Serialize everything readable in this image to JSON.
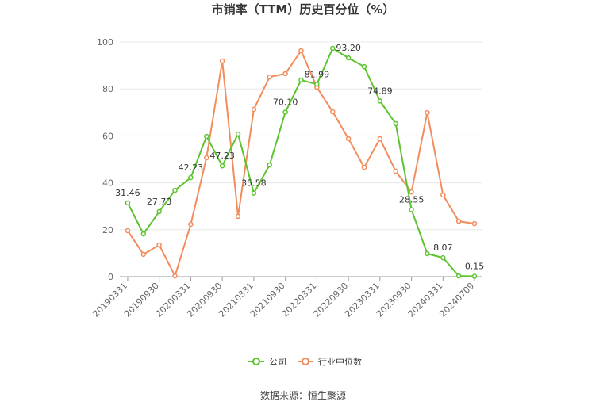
{
  "chart_data": {
    "type": "line",
    "title": "市销率（TTM）历史百分位（%）",
    "categories": [
      "20190331",
      null,
      "20190930",
      null,
      "20200331",
      null,
      "20200930",
      null,
      "20210331",
      null,
      "20210930",
      null,
      "20220331",
      null,
      "20220930",
      null,
      "20230331",
      null,
      "20230930",
      null,
      "20240331",
      null,
      "20240709"
    ],
    "series": [
      {
        "name": "公司",
        "color": "#5cc42e",
        "values": [
          31.46,
          18.2,
          27.73,
          36.8,
          42.23,
          59.8,
          47.23,
          60.8,
          35.58,
          47.6,
          70.1,
          83.8,
          81.99,
          97.3,
          93.2,
          89.5,
          74.89,
          65.2,
          28.55,
          9.8,
          8.07,
          0.3,
          0.15
        ],
        "value_labels": [
          "31.46",
          null,
          "27.73",
          null,
          "42.23",
          null,
          "47.23",
          null,
          "35.58",
          null,
          "70.10",
          null,
          "81.99",
          null,
          "93.20",
          null,
          "74.89",
          null,
          "28.55",
          null,
          "8.07",
          null,
          "0.15"
        ]
      },
      {
        "name": "行业中位数",
        "color": "#f28c5c",
        "values": [
          19.6,
          9.5,
          13.5,
          0.3,
          22.3,
          50.7,
          91.9,
          25.7,
          71.3,
          85.1,
          86.5,
          96.3,
          80.7,
          70.3,
          58.8,
          46.6,
          58.8,
          44.9,
          36.1,
          69.9,
          34.8,
          23.6,
          22.6
        ]
      }
    ],
    "ylim": [
      0,
      100
    ],
    "yticks": [
      0,
      20,
      40,
      60,
      80,
      100
    ],
    "grid": true,
    "source": "数据来源：恒生聚源"
  }
}
